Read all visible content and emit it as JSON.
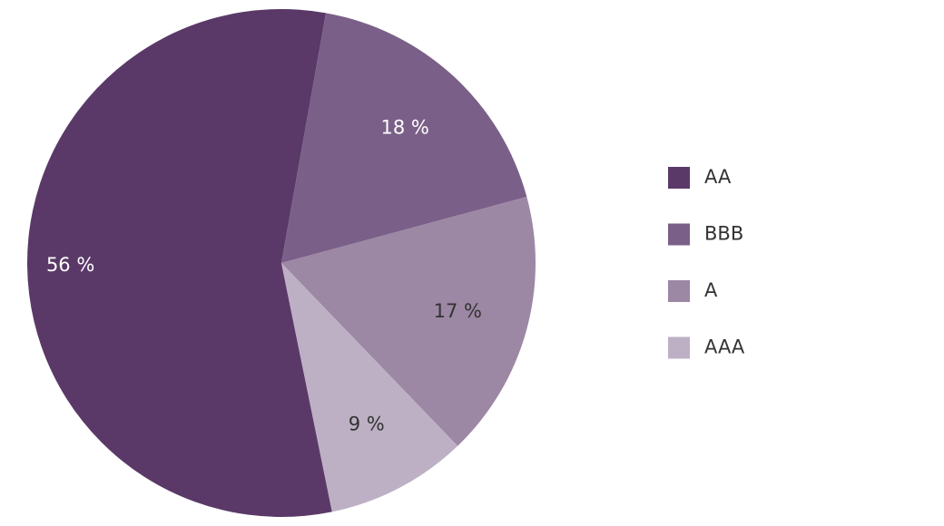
{
  "chart_data": {
    "type": "pie",
    "categories": [
      "AA",
      "BBB",
      "A",
      "AAA"
    ],
    "values": [
      56,
      18,
      17,
      9
    ],
    "value_labels": [
      "56 %",
      "18 %",
      "17 %",
      "9 %"
    ],
    "colors": [
      "#5a3968",
      "#7a6088",
      "#9c87a4",
      "#bdb0c4"
    ],
    "legend": "right"
  }
}
